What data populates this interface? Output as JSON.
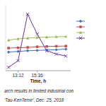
{
  "chart_data": {
    "type": "line",
    "x": [
      0,
      1,
      2,
      3,
      4,
      5,
      6
    ],
    "series": [
      {
        "color": "#4472c4",
        "marker": "diamond",
        "values": [
          2.8,
          2.9,
          3.0,
          3.05,
          3.1,
          3.15,
          3.25
        ]
      },
      {
        "color": "#c0504d",
        "marker": "square",
        "values": [
          3.4,
          3.45,
          3.5,
          3.6,
          3.65,
          3.68,
          3.7
        ]
      },
      {
        "color": "#9bbb59",
        "marker": "triangle",
        "values": [
          4.6,
          4.8,
          4.9,
          5.0,
          5.05,
          5.1,
          5.15
        ]
      },
      {
        "color": "#7030a0",
        "marker": "x",
        "values": [
          0.5,
          1.5,
          8.5,
          5.5,
          3.0,
          2.5,
          2.2
        ]
      }
    ],
    "x_label": "Time, h",
    "xlim": [
      -0.3,
      6.5
    ],
    "xticks": [
      {
        "value": 1,
        "label": "13:12"
      },
      {
        "value": 3,
        "label": "15:36"
      }
    ],
    "ylim": [
      0,
      10
    ],
    "tick_labels": "x",
    "legend": "right",
    "annotations": [
      "arch results in limited industrial con",
      "'Tau-KenTemir',  Dec. 25, 2018"
    ]
  }
}
